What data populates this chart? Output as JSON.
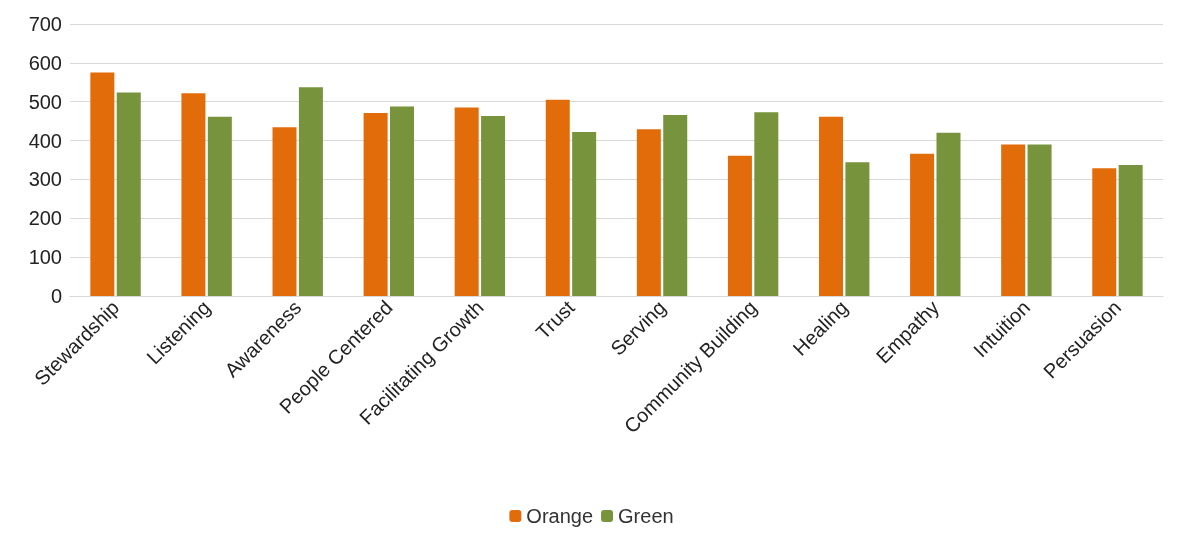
{
  "chart_data": {
    "type": "bar",
    "categories": [
      "Stewardship",
      "Listening",
      "Awareness",
      "People Centered",
      "Facilitating Growth",
      "Trust",
      "Serving",
      "Community Building",
      "Healing",
      "Empathy",
      "Intuition",
      "Persuasion"
    ],
    "series": [
      {
        "name": "Orange",
        "color": "#e36c0a",
        "values": [
          575,
          522,
          434,
          471,
          485,
          505,
          429,
          361,
          461,
          366,
          390,
          329
        ]
      },
      {
        "name": "Green",
        "color": "#77933c",
        "values": [
          524,
          461,
          537,
          488,
          463,
          422,
          466,
          473,
          344,
          420,
          390,
          337
        ]
      }
    ],
    "ylim": [
      0,
      700
    ],
    "yticks": [
      0,
      100,
      200,
      300,
      400,
      500,
      600,
      700
    ],
    "grid": "y",
    "legend": "bottom"
  }
}
